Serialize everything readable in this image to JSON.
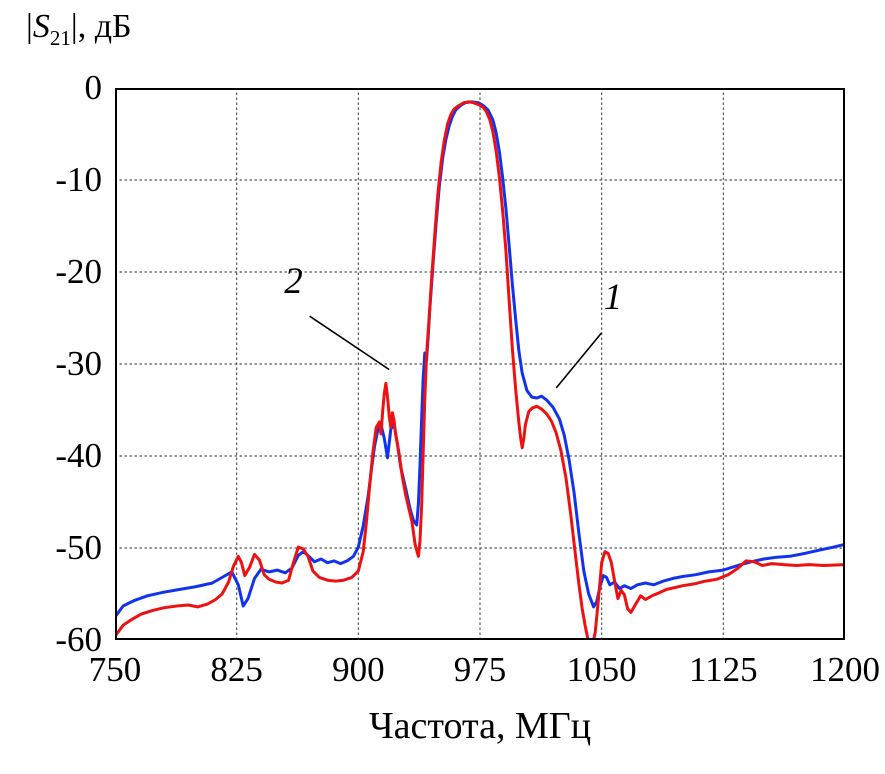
{
  "y_axis_label": {
    "prefix": "|",
    "symbol": "S",
    "subscript": "21",
    "suffix": "|, дБ"
  },
  "x_axis_title": "Частота, МГц",
  "chart_data": {
    "type": "line",
    "title": "",
    "xlabel": "Частота, МГц",
    "ylabel": "|S21|, дБ",
    "xlim": [
      750,
      1200
    ],
    "ylim": [
      -60,
      0
    ],
    "xticks": [
      750,
      825,
      900,
      975,
      1050,
      1125,
      1200
    ],
    "yticks": [
      0,
      -10,
      -20,
      -30,
      -40,
      -50,
      -60
    ],
    "grid": "dotted",
    "grid_color": "#555555",
    "border_color": "#000000",
    "series": [
      {
        "name": "1",
        "color": "#1133ee",
        "points": [
          [
            750,
            -57.5
          ],
          [
            755,
            -56.3
          ],
          [
            762,
            -55.7
          ],
          [
            770,
            -55.2
          ],
          [
            780,
            -54.8
          ],
          [
            790,
            -54.5
          ],
          [
            800,
            -54.2
          ],
          [
            810,
            -53.8
          ],
          [
            817,
            -53.1
          ],
          [
            822,
            -52.6
          ],
          [
            826,
            -54.0
          ],
          [
            829,
            -56.3
          ],
          [
            832,
            -55.5
          ],
          [
            836,
            -53.3
          ],
          [
            840,
            -52.3
          ],
          [
            845,
            -52.6
          ],
          [
            850,
            -52.4
          ],
          [
            855,
            -52.7
          ],
          [
            859,
            -52.2
          ],
          [
            863,
            -50.8
          ],
          [
            866,
            -50.4
          ],
          [
            869,
            -50.8
          ],
          [
            873,
            -51.5
          ],
          [
            877,
            -51.2
          ],
          [
            881,
            -51.6
          ],
          [
            885,
            -51.4
          ],
          [
            889,
            -51.7
          ],
          [
            893,
            -51.4
          ],
          [
            897,
            -50.9
          ],
          [
            900,
            -49.9
          ],
          [
            903,
            -47.6
          ],
          [
            906,
            -44.4
          ],
          [
            908,
            -41.6
          ],
          [
            910,
            -38.9
          ],
          [
            912,
            -37.2
          ],
          [
            914,
            -36.6
          ],
          [
            916,
            -38.1
          ],
          [
            918,
            -40.2
          ],
          [
            920,
            -37.1
          ],
          [
            922,
            -36.5
          ],
          [
            924,
            -38.6
          ],
          [
            926,
            -41.1
          ],
          [
            929,
            -43.4
          ],
          [
            932,
            -45.8
          ],
          [
            934,
            -47.0
          ],
          [
            936,
            -47.5
          ],
          [
            937,
            -45.2
          ],
          [
            938,
            -41.0
          ],
          [
            939,
            -36.0
          ],
          [
            940,
            -31.5
          ],
          [
            941,
            -28.8
          ],
          [
            942,
            -29.6
          ],
          [
            943,
            -27.2
          ],
          [
            944,
            -24.2
          ],
          [
            946,
            -19.2
          ],
          [
            948,
            -14.6
          ],
          [
            950,
            -10.6
          ],
          [
            952,
            -7.6
          ],
          [
            954,
            -5.6
          ],
          [
            956,
            -4.1
          ],
          [
            958,
            -3.1
          ],
          [
            960,
            -2.4
          ],
          [
            963,
            -1.9
          ],
          [
            966,
            -1.6
          ],
          [
            970,
            -1.5
          ],
          [
            974,
            -1.6
          ],
          [
            977,
            -1.9
          ],
          [
            980,
            -2.4
          ],
          [
            983,
            -3.5
          ],
          [
            985,
            -4.9
          ],
          [
            987,
            -7.0
          ],
          [
            989,
            -9.8
          ],
          [
            991,
            -13.2
          ],
          [
            993,
            -17.2
          ],
          [
            995,
            -21.4
          ],
          [
            997,
            -25.2
          ],
          [
            999,
            -28.6
          ],
          [
            1001,
            -31.0
          ],
          [
            1004,
            -32.9
          ],
          [
            1007,
            -33.6
          ],
          [
            1010,
            -33.7
          ],
          [
            1013,
            -33.5
          ],
          [
            1016,
            -33.9
          ],
          [
            1020,
            -34.7
          ],
          [
            1024,
            -36.0
          ],
          [
            1027,
            -37.8
          ],
          [
            1030,
            -40.5
          ],
          [
            1033,
            -44.0
          ],
          [
            1036,
            -48.5
          ],
          [
            1039,
            -52.5
          ],
          [
            1042,
            -55.0
          ],
          [
            1045,
            -56.4
          ],
          [
            1047,
            -55.8
          ],
          [
            1049,
            -54.2
          ],
          [
            1051,
            -53.0
          ],
          [
            1053,
            -53.2
          ],
          [
            1055,
            -54.0
          ],
          [
            1058,
            -53.7
          ],
          [
            1061,
            -54.4
          ],
          [
            1064,
            -54.1
          ],
          [
            1068,
            -54.4
          ],
          [
            1072,
            -54.0
          ],
          [
            1077,
            -53.8
          ],
          [
            1082,
            -54.0
          ],
          [
            1088,
            -53.6
          ],
          [
            1094,
            -53.3
          ],
          [
            1100,
            -53.1
          ],
          [
            1108,
            -52.9
          ],
          [
            1116,
            -52.6
          ],
          [
            1125,
            -52.4
          ],
          [
            1134,
            -51.9
          ],
          [
            1142,
            -51.5
          ],
          [
            1150,
            -51.2
          ],
          [
            1158,
            -51.0
          ],
          [
            1166,
            -50.9
          ],
          [
            1175,
            -50.6
          ],
          [
            1185,
            -50.2
          ],
          [
            1193,
            -49.9
          ],
          [
            1200,
            -49.6
          ]
        ]
      },
      {
        "name": "2",
        "color": "#ee1111",
        "points": [
          [
            750,
            -59.6
          ],
          [
            755,
            -58.4
          ],
          [
            760,
            -57.8
          ],
          [
            766,
            -57.2
          ],
          [
            773,
            -56.8
          ],
          [
            780,
            -56.5
          ],
          [
            788,
            -56.3
          ],
          [
            795,
            -56.2
          ],
          [
            801,
            -56.4
          ],
          [
            807,
            -56.1
          ],
          [
            812,
            -55.6
          ],
          [
            816,
            -55.0
          ],
          [
            820,
            -53.7
          ],
          [
            823,
            -52.0
          ],
          [
            826,
            -50.9
          ],
          [
            828,
            -51.6
          ],
          [
            830,
            -53.0
          ],
          [
            833,
            -52.1
          ],
          [
            836,
            -50.7
          ],
          [
            839,
            -51.3
          ],
          [
            842,
            -52.9
          ],
          [
            845,
            -53.4
          ],
          [
            849,
            -53.7
          ],
          [
            853,
            -53.8
          ],
          [
            857,
            -53.5
          ],
          [
            860,
            -51.6
          ],
          [
            863,
            -49.9
          ],
          [
            866,
            -50.1
          ],
          [
            869,
            -50.9
          ],
          [
            872,
            -52.5
          ],
          [
            876,
            -53.2
          ],
          [
            881,
            -53.5
          ],
          [
            886,
            -53.6
          ],
          [
            891,
            -53.5
          ],
          [
            896,
            -53.2
          ],
          [
            900,
            -52.5
          ],
          [
            903,
            -50.4
          ],
          [
            905,
            -47.2
          ],
          [
            907,
            -43.2
          ],
          [
            909,
            -39.6
          ],
          [
            911,
            -36.9
          ],
          [
            913,
            -36.3
          ],
          [
            914,
            -37.6
          ],
          [
            915,
            -35.1
          ],
          [
            916,
            -33.2
          ],
          [
            917,
            -32.1
          ],
          [
            918,
            -33.6
          ],
          [
            919,
            -35.6
          ],
          [
            920,
            -36.9
          ],
          [
            921,
            -35.3
          ],
          [
            922,
            -36.1
          ],
          [
            923,
            -37.6
          ],
          [
            925,
            -39.6
          ],
          [
            927,
            -42.1
          ],
          [
            929,
            -44.1
          ],
          [
            931,
            -45.6
          ],
          [
            933,
            -47.1
          ],
          [
            935,
            -49.6
          ],
          [
            937,
            -50.9
          ],
          [
            938,
            -49.2
          ],
          [
            939,
            -45.5
          ],
          [
            940,
            -39.5
          ],
          [
            941,
            -33.8
          ],
          [
            942,
            -29.2
          ],
          [
            943,
            -26.6
          ],
          [
            944,
            -24.1
          ],
          [
            945,
            -21.2
          ],
          [
            947,
            -16.2
          ],
          [
            949,
            -11.6
          ],
          [
            951,
            -8.1
          ],
          [
            953,
            -5.7
          ],
          [
            955,
            -3.9
          ],
          [
            957,
            -2.9
          ],
          [
            959,
            -2.3
          ],
          [
            962,
            -1.9
          ],
          [
            965,
            -1.6
          ],
          [
            968,
            -1.5
          ],
          [
            971,
            -1.6
          ],
          [
            974,
            -1.8
          ],
          [
            977,
            -2.1
          ],
          [
            979,
            -2.6
          ],
          [
            981,
            -3.4
          ],
          [
            983,
            -4.8
          ],
          [
            985,
            -6.9
          ],
          [
            987,
            -9.8
          ],
          [
            989,
            -13.4
          ],
          [
            991,
            -17.8
          ],
          [
            993,
            -23.2
          ],
          [
            995,
            -28.4
          ],
          [
            997,
            -32.8
          ],
          [
            999,
            -36.4
          ],
          [
            1000,
            -38.0
          ],
          [
            1001,
            -39.1
          ],
          [
            1002,
            -38.1
          ],
          [
            1003,
            -36.6
          ],
          [
            1005,
            -35.2
          ],
          [
            1007,
            -34.8
          ],
          [
            1010,
            -34.6
          ],
          [
            1013,
            -34.9
          ],
          [
            1016,
            -35.4
          ],
          [
            1019,
            -36.2
          ],
          [
            1022,
            -37.5
          ],
          [
            1025,
            -39.5
          ],
          [
            1028,
            -42.4
          ],
          [
            1031,
            -46.4
          ],
          [
            1034,
            -51.0
          ],
          [
            1036,
            -54.0
          ],
          [
            1038,
            -56.6
          ],
          [
            1040,
            -58.6
          ],
          [
            1042,
            -60.3
          ],
          [
            1044,
            -60.8
          ],
          [
            1046,
            -59.2
          ],
          [
            1048,
            -55.6
          ],
          [
            1050,
            -51.6
          ],
          [
            1052,
            -50.4
          ],
          [
            1054,
            -50.6
          ],
          [
            1056,
            -51.6
          ],
          [
            1058,
            -53.6
          ],
          [
            1060,
            -55.5
          ],
          [
            1062,
            -54.6
          ],
          [
            1064,
            -55.1
          ],
          [
            1066,
            -56.6
          ],
          [
            1068,
            -57.0
          ],
          [
            1071,
            -56.1
          ],
          [
            1074,
            -55.2
          ],
          [
            1077,
            -55.6
          ],
          [
            1081,
            -55.2
          ],
          [
            1085,
            -54.9
          ],
          [
            1090,
            -54.5
          ],
          [
            1095,
            -54.3
          ],
          [
            1100,
            -54.1
          ],
          [
            1107,
            -53.9
          ],
          [
            1114,
            -53.6
          ],
          [
            1121,
            -53.4
          ],
          [
            1128,
            -52.9
          ],
          [
            1134,
            -52.2
          ],
          [
            1139,
            -51.4
          ],
          [
            1144,
            -51.5
          ],
          [
            1149,
            -51.9
          ],
          [
            1155,
            -51.7
          ],
          [
            1162,
            -51.8
          ],
          [
            1170,
            -51.9
          ],
          [
            1178,
            -51.8
          ],
          [
            1187,
            -51.9
          ],
          [
            1200,
            -51.8
          ]
        ]
      }
    ],
    "annotations": [
      {
        "text": "2",
        "text_xy": [
          860,
          -22.3
        ],
        "line_from": [
          870,
          -24.8
        ],
        "line_to": [
          919,
          -30.6
        ]
      },
      {
        "text": "1",
        "text_xy": [
          1057,
          -24.0
        ],
        "line_from": [
          1050,
          -26.6
        ],
        "line_to": [
          1022,
          -32.6
        ]
      }
    ]
  }
}
